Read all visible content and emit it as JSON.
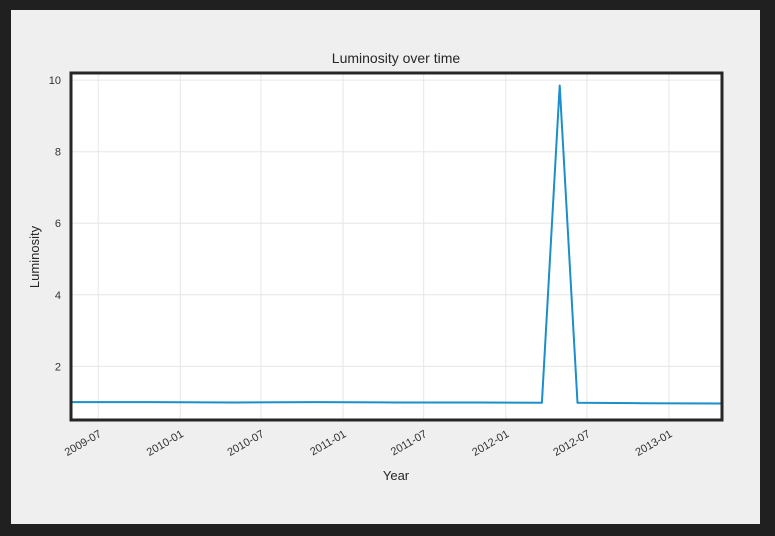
{
  "chart_data": {
    "type": "line",
    "title": "Luminosity over time",
    "xlabel": "Year",
    "ylabel": "Luminosity",
    "x_ticks": [
      "2009-07",
      "2010-01",
      "2010-07",
      "2011-01",
      "2011-07",
      "2012-01",
      "2012-07",
      "2013-01"
    ],
    "y_ticks": [
      2,
      4,
      6,
      8,
      10
    ],
    "xlim": [
      "2009-05-01",
      "2013-04-30"
    ],
    "ylim": [
      0.5,
      10.2
    ],
    "grid": true,
    "colors": {
      "line": "#1a8fc9",
      "frame": "#262626",
      "background": "#ffffff"
    },
    "series": [
      {
        "x": [
          "2009-05-01",
          "2009-11-01",
          "2010-05-01",
          "2010-11-01",
          "2011-05-01",
          "2011-11-01",
          "2012-03-22",
          "2012-05-01",
          "2012-06-10",
          "2012-11-01",
          "2013-04-30"
        ],
        "values": [
          1.0,
          1.0,
          0.99,
          1.0,
          0.99,
          0.99,
          0.98,
          9.85,
          0.98,
          0.97,
          0.96
        ]
      }
    ]
  }
}
